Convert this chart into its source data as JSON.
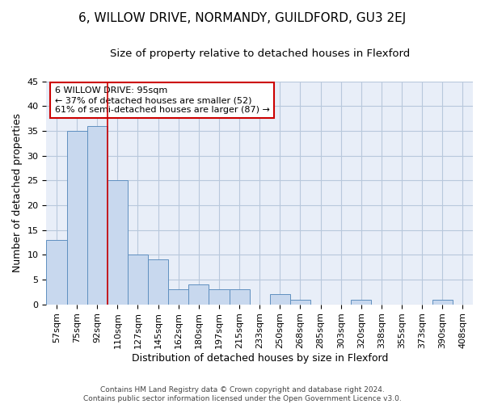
{
  "title": "6, WILLOW DRIVE, NORMANDY, GUILDFORD, GU3 2EJ",
  "subtitle": "Size of property relative to detached houses in Flexford",
  "xlabel": "Distribution of detached houses by size in Flexford",
  "ylabel": "Number of detached properties",
  "categories": [
    "57sqm",
    "75sqm",
    "92sqm",
    "110sqm",
    "127sqm",
    "145sqm",
    "162sqm",
    "180sqm",
    "197sqm",
    "215sqm",
    "233sqm",
    "250sqm",
    "268sqm",
    "285sqm",
    "303sqm",
    "320sqm",
    "338sqm",
    "355sqm",
    "373sqm",
    "390sqm",
    "408sqm"
  ],
  "values": [
    13,
    35,
    36,
    25,
    10,
    9,
    3,
    4,
    3,
    3,
    0,
    2,
    1,
    0,
    0,
    1,
    0,
    0,
    0,
    1,
    0
  ],
  "bar_color": "#c8d8ee",
  "bar_edge_color": "#6090c0",
  "vline_x": 2.5,
  "vline_color": "#cc0000",
  "annotation_box_text": "6 WILLOW DRIVE: 95sqm\n← 37% of detached houses are smaller (52)\n61% of semi-detached houses are larger (87) →",
  "annotation_box_color": "#cc0000",
  "ylim": [
    0,
    45
  ],
  "yticks": [
    0,
    5,
    10,
    15,
    20,
    25,
    30,
    35,
    40,
    45
  ],
  "background_color": "#e8eef8",
  "title_fontsize": 11,
  "subtitle_fontsize": 9.5,
  "ylabel_fontsize": 9,
  "xlabel_fontsize": 9,
  "tick_fontsize": 8,
  "footer_text": "Contains HM Land Registry data © Crown copyright and database right 2024.\nContains public sector information licensed under the Open Government Licence v3.0.",
  "grid_color": "#b8c8dc"
}
